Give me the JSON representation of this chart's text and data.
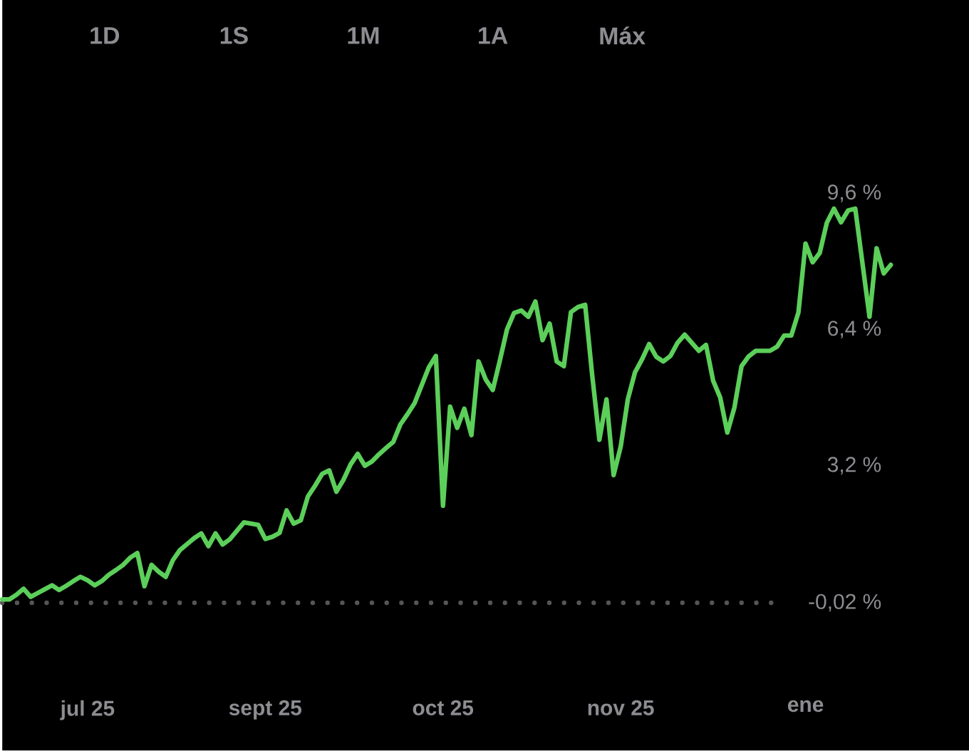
{
  "chart_data": {
    "type": "line",
    "annotations": [
      "1D",
      "1S",
      "1M",
      "1A",
      "Máx"
    ],
    "categories": [
      null,
      null,
      null,
      null,
      null,
      null,
      null,
      null,
      null,
      null,
      null,
      null,
      "jul 25",
      null,
      null,
      null,
      null,
      null,
      null,
      null,
      null,
      null,
      null,
      null,
      null,
      null,
      null,
      null,
      null,
      null,
      null,
      null,
      null,
      null,
      null,
      null,
      null,
      "sept 25",
      null,
      null,
      null,
      null,
      null,
      null,
      null,
      null,
      null,
      null,
      null,
      null,
      null,
      null,
      null,
      null,
      null,
      null,
      null,
      null,
      null,
      null,
      null,
      null,
      "oct 25",
      null,
      null,
      null,
      null,
      null,
      null,
      null,
      null,
      null,
      null,
      null,
      null,
      null,
      null,
      null,
      null,
      null,
      null,
      null,
      null,
      null,
      null,
      null,
      null,
      "nov 25",
      null,
      null,
      null,
      null,
      null,
      null,
      null,
      null,
      null,
      null,
      null,
      null,
      null,
      null,
      null,
      null,
      null,
      null,
      null,
      null,
      null,
      null,
      null,
      null,
      null,
      "ene",
      null,
      null,
      null,
      null,
      null,
      null,
      null,
      null,
      null,
      null,
      null,
      null
    ],
    "series": [
      {
        "color": "#5ccf5a",
        "values": [
          0.06,
          0.06,
          0.17,
          0.31,
          0.12,
          0.21,
          0.3,
          0.39,
          0.28,
          0.38,
          0.49,
          0.59,
          0.51,
          0.39,
          0.49,
          0.64,
          0.75,
          0.87,
          1.04,
          1.15,
          0.37,
          0.87,
          0.71,
          0.59,
          0.98,
          1.22,
          1.36,
          1.5,
          1.61,
          1.31,
          1.61,
          1.35,
          1.47,
          1.67,
          1.87,
          1.84,
          1.81,
          1.48,
          1.53,
          1.62,
          2.15,
          1.84,
          1.92,
          2.48,
          2.73,
          3.01,
          3.09,
          2.59,
          2.87,
          3.23,
          3.48,
          3.2,
          3.3,
          3.47,
          3.62,
          3.76,
          4.17,
          4.41,
          4.67,
          5.09,
          5.51,
          5.78,
          2.26,
          4.59,
          4.09,
          4.54,
          3.92,
          5.65,
          5.23,
          4.98,
          5.67,
          6.4,
          6.79,
          6.85,
          6.7,
          7.06,
          6.15,
          6.54,
          5.65,
          5.54,
          6.81,
          6.93,
          6.98,
          5.31,
          3.81,
          4.76,
          2.98,
          3.65,
          4.76,
          5.39,
          5.7,
          6.06,
          5.76,
          5.65,
          5.78,
          6.09,
          6.28,
          6.09,
          5.9,
          6.04,
          5.2,
          4.8,
          3.98,
          4.57,
          5.54,
          5.77,
          5.9,
          5.9,
          5.9,
          6.0,
          6.26,
          6.26,
          6.8,
          8.42,
          7.98,
          8.2,
          8.91,
          9.24,
          8.92,
          9.2,
          9.24,
          7.97,
          6.7,
          8.31,
          7.72,
          7.92
        ]
      }
    ],
    "ylim": [
      -0.02,
      9.6
    ],
    "yticks": [
      {
        "value": -0.02,
        "label": "-0,02 %"
      },
      {
        "value": 3.2,
        "label": "3,2 %"
      },
      {
        "value": 6.4,
        "label": "6,4 %"
      },
      {
        "value": 9.6,
        "label": "9,6 %"
      }
    ],
    "ref_lines": [
      {
        "axis": "y",
        "value": -0.02,
        "color": "#555555",
        "line_style": "dotted"
      }
    ]
  }
}
